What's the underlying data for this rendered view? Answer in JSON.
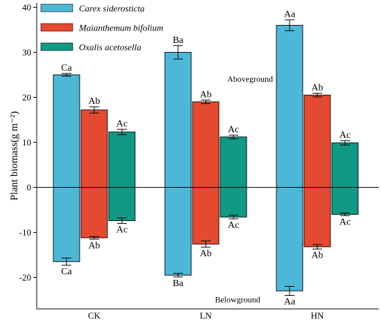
{
  "chart_data": {
    "type": "bar",
    "ylabel": "Plant biomass(g m⁻²)",
    "ylim": [
      -27,
      41
    ],
    "yticks": [
      -20,
      -10,
      0,
      10,
      20,
      30,
      40
    ],
    "categories": [
      "CK",
      "LN",
      "HN"
    ],
    "series": [
      {
        "name": "Carex siderosticta",
        "color": "#4DB7D8",
        "above": [
          25.0,
          30.0,
          36.0
        ],
        "above_err": [
          0.3,
          1.5,
          1.2
        ],
        "above_sig": [
          "Ca",
          "Ba",
          "Aa"
        ],
        "below": [
          -16.5,
          -19.5,
          -23.0
        ],
        "below_err": [
          0.8,
          0.4,
          1.0
        ],
        "below_sig": [
          "Ca",
          "Ba",
          "Aa"
        ]
      },
      {
        "name": "Maianthemum bifolium",
        "color": "#E44A32",
        "above": [
          17.2,
          19.0,
          20.5
        ],
        "above_err": [
          0.7,
          0.4,
          0.4
        ],
        "above_sig": [
          "Ab",
          "Ab",
          "Ab"
        ],
        "below": [
          -11.2,
          -12.6,
          -13.2
        ],
        "below_err": [
          0.3,
          0.7,
          0.5
        ],
        "below_sig": [
          "Ab",
          "Ab",
          "Ab"
        ]
      },
      {
        "name": "Oxalis acetosella",
        "color": "#119983",
        "above": [
          12.3,
          11.2,
          9.9
        ],
        "above_err": [
          0.6,
          0.4,
          0.5
        ],
        "above_sig": [
          "Ac",
          "Ac",
          "Ac"
        ],
        "below": [
          -7.4,
          -6.6,
          -6.0
        ],
        "below_err": [
          0.6,
          0.4,
          0.3
        ],
        "below_sig": [
          "Ac",
          "Ac",
          "Ac"
        ]
      }
    ],
    "annotations": {
      "above": "Aboveground",
      "below": "Belowground"
    },
    "legend_position": "top-left"
  }
}
